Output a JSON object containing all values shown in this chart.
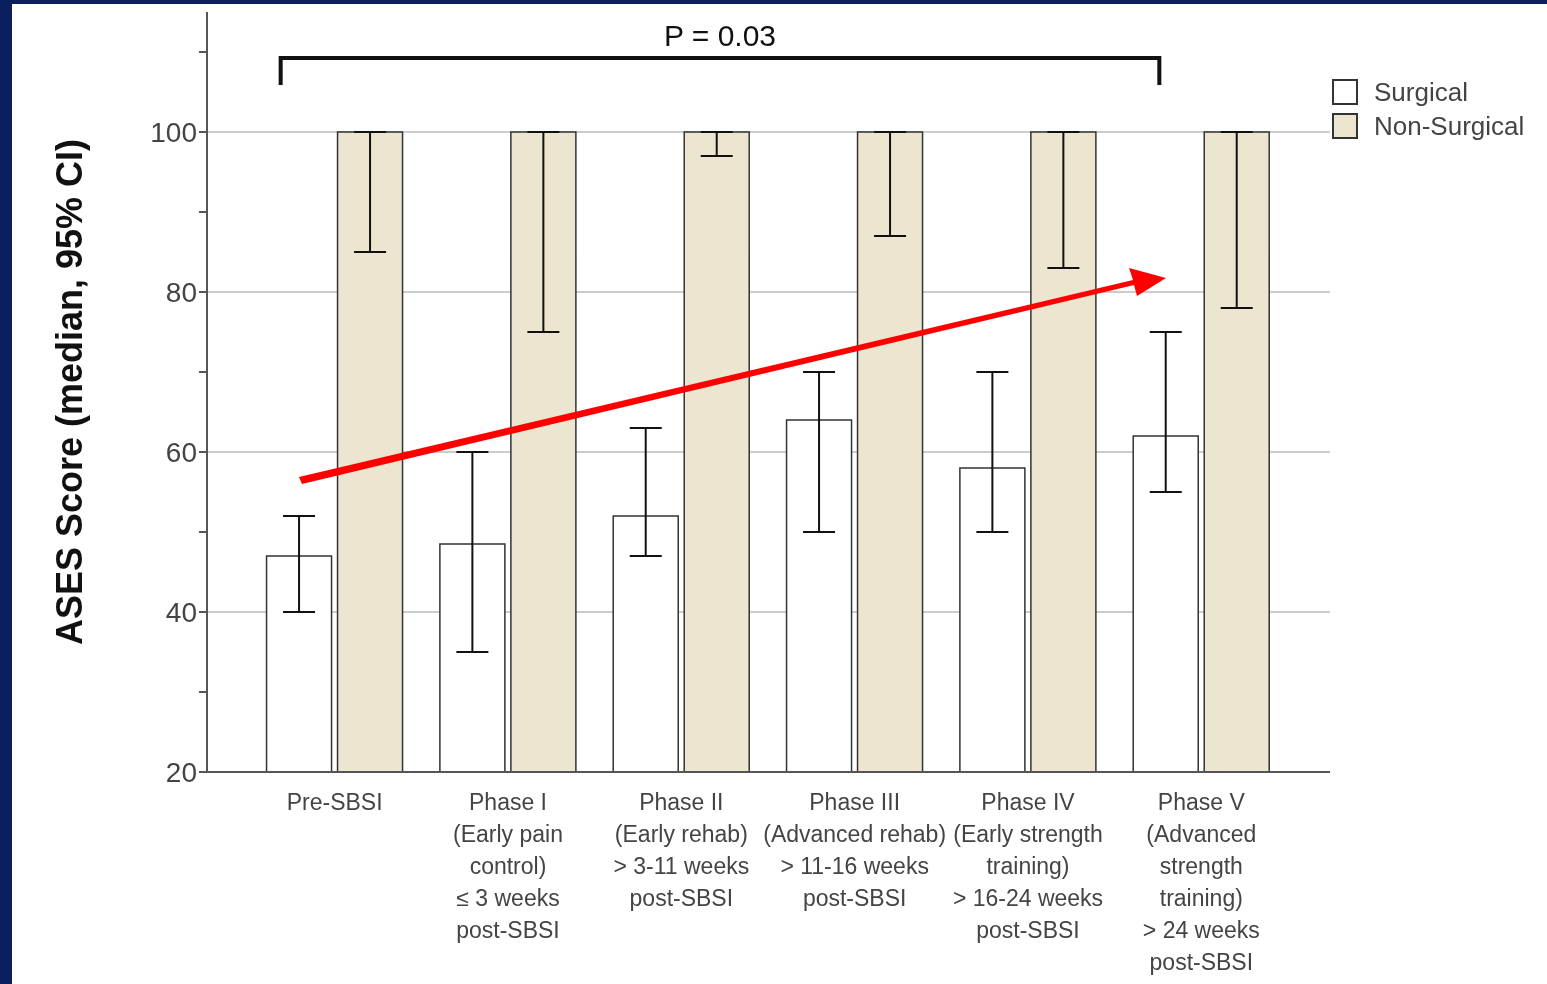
{
  "chart_data": {
    "type": "bar",
    "ylabel": "ASES Score (median, 95% CI)",
    "categories": [
      "Pre-SBSI",
      "Phase I\n(Early pain\ncontrol)\n≤ 3 weeks\npost-SBSI",
      "Phase II\n(Early rehab)\n> 3-11 weeks\npost-SBSI",
      "Phase III\n(Advanced rehab)\n> 11-16 weeks\npost-SBSI",
      "Phase IV\n(Early strength\ntraining)\n> 16-24 weeks\npost-SBSI",
      "Phase V\n(Advanced\nstrength\ntraining)\n> 24 weeks\npost-SBSI"
    ],
    "series": [
      {
        "name": "Surgical",
        "color": "#ffffff",
        "values": [
          47,
          48.5,
          52,
          64,
          58,
          62
        ],
        "errors": [
          [
            40,
            52
          ],
          [
            35,
            60
          ],
          [
            47,
            63
          ],
          [
            50,
            70
          ],
          [
            50,
            70
          ],
          [
            55,
            75
          ]
        ]
      },
      {
        "name": "Non-Surgical",
        "color": "#ece5d0",
        "values": [
          100,
          100,
          100,
          100,
          100,
          100
        ],
        "errors": [
          [
            85,
            100
          ],
          [
            75,
            100
          ],
          [
            97,
            100
          ],
          [
            87,
            100
          ],
          [
            83,
            100
          ],
          [
            78,
            100
          ]
        ]
      }
    ],
    "ylim": [
      20,
      115
    ],
    "yticks": [
      20,
      {
        "value": 30,
        "label": null
      },
      40,
      {
        "value": 50,
        "label": null
      },
      60,
      {
        "value": 70,
        "label": null
      },
      80,
      {
        "value": 90,
        "label": null
      },
      100,
      {
        "value": 110,
        "label": null
      }
    ],
    "grid": "y",
    "legend": "top right",
    "annotations": [
      "P = 0.03"
    ]
  }
}
